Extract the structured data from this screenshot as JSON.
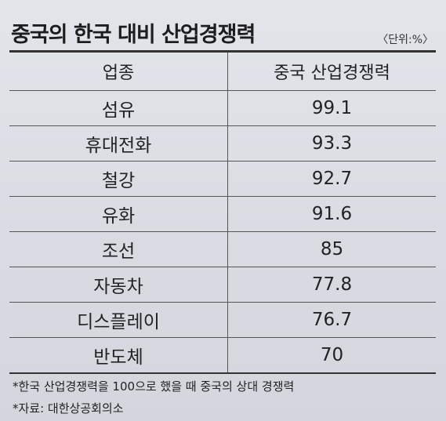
{
  "title": "중국의 한국 대비 산업경쟁력",
  "unit": "〈단위:%〉",
  "table": {
    "header": [
      "업종",
      "중국 산업경쟁력"
    ],
    "rows": [
      [
        "섬유",
        "99.1"
      ],
      [
        "휴대전화",
        "93.3"
      ],
      [
        "철강",
        "92.7"
      ],
      [
        "유화",
        "91.6"
      ],
      [
        "조선",
        "85"
      ],
      [
        "자동차",
        "77.8"
      ],
      [
        "디스플레이",
        "76.7"
      ],
      [
        "반도체",
        "70"
      ]
    ]
  },
  "notes": [
    "*한국 산업경쟁력을 100으로 했을 때 중국의 상대 경쟁력",
    "*자료: 대한상공회의소"
  ]
}
